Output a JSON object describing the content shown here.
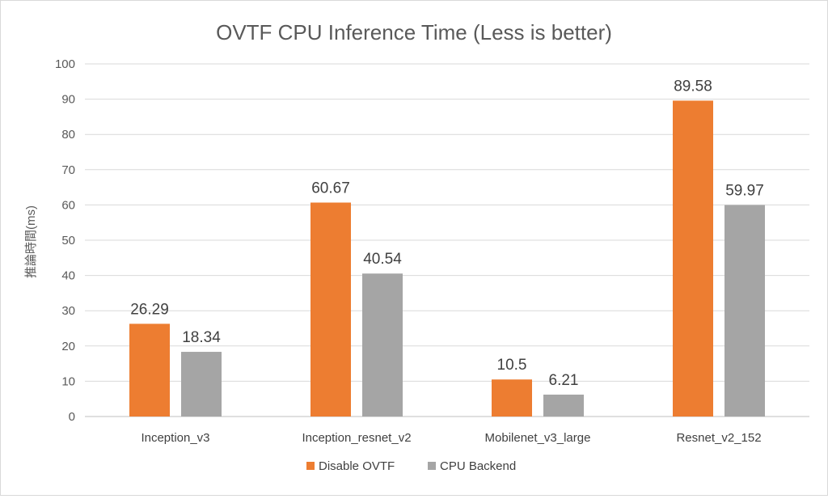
{
  "chart_data": {
    "type": "bar",
    "title": "OVTF CPU Inference Time (Less is better)",
    "xlabel": "",
    "ylabel": "推論時間(ms)",
    "categories": [
      "Inception_v3",
      "Inception_resnet_v2",
      "Mobilenet_v3_large",
      "Resnet_v2_152"
    ],
    "series": [
      {
        "name": "Disable OVTF",
        "color": "#ed7d31",
        "values": [
          26.29,
          60.67,
          10.5,
          89.58
        ]
      },
      {
        "name": "CPU Backend",
        "color": "#a5a5a5",
        "values": [
          18.34,
          40.54,
          6.21,
          59.97
        ]
      }
    ],
    "ylim": [
      0,
      100
    ],
    "yticks": [
      0,
      10,
      20,
      30,
      40,
      50,
      60,
      70,
      80,
      90,
      100
    ],
    "grid": true,
    "legend_position": "bottom",
    "data_labels": true
  }
}
